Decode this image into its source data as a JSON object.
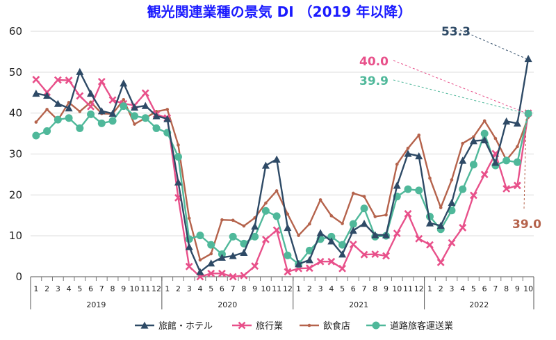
{
  "chart_data": {
    "type": "line",
    "title": "観光関連業種の景気 DI （2019 年以降）",
    "title_color": "#1a1aff",
    "ylim": [
      0,
      60
    ],
    "yticks": [
      0,
      10,
      20,
      30,
      40,
      50,
      60
    ],
    "grid": "horizontal",
    "legend_position": "bottom",
    "month_labels": [
      "1",
      "2",
      "3",
      "4",
      "5",
      "6",
      "7",
      "8",
      "9",
      "10",
      "11",
      "12",
      "1",
      "2",
      "3",
      "4",
      "5",
      "6",
      "7",
      "8",
      "9",
      "10",
      "11",
      "12",
      "1",
      "2",
      "3",
      "4",
      "5",
      "6",
      "7",
      "8",
      "9",
      "10",
      "11",
      "12",
      "1",
      "2",
      "3",
      "4",
      "5",
      "6",
      "7",
      "8",
      "9",
      "10"
    ],
    "year_labels": [
      "2019",
      "2020",
      "2021",
      "2022"
    ],
    "series": [
      {
        "name": "旅館・ホテル",
        "color": "#2e4a66",
        "marker": "triangle",
        "values": [
          44.8,
          44.3,
          42.3,
          41.2,
          50.1,
          44.8,
          40.5,
          39.9,
          47.3,
          41.4,
          41.8,
          39.3,
          38.6,
          23.1,
          7.3,
          1.2,
          3.3,
          4.7,
          5.1,
          5.9,
          12.3,
          27.2,
          28.7,
          12.0,
          3.1,
          4.1,
          10.7,
          8.7,
          5.5,
          11.3,
          13.0,
          10.2,
          10.2,
          22.3,
          30.1,
          29.5,
          13.1,
          12.5,
          18.1,
          28.4,
          33.2,
          33.4,
          27.9,
          38.0,
          37.5,
          53.3
        ]
      },
      {
        "name": "旅行業",
        "color": "#e8508a",
        "marker": "x",
        "values": [
          48.2,
          45.1,
          48.1,
          48.0,
          44.2,
          41.6,
          47.7,
          43.2,
          42.3,
          41.9,
          44.9,
          39.7,
          38.8,
          19.3,
          2.5,
          0.0,
          0.8,
          0.8,
          0.0,
          0.3,
          2.6,
          9.1,
          11.4,
          1.2,
          2.0,
          2.1,
          3.7,
          3.7,
          2.0,
          7.9,
          5.4,
          5.5,
          5.1,
          10.6,
          15.4,
          9.3,
          7.8,
          3.5,
          8.3,
          12.0,
          19.9,
          25.0,
          30.1,
          21.5,
          22.3,
          40.0
        ]
      },
      {
        "name": "飲食店",
        "color": "#b5634c",
        "marker": "circle-small",
        "values": [
          37.8,
          40.9,
          38.3,
          42.6,
          40.4,
          42.7,
          39.9,
          39.8,
          43.3,
          37.3,
          38.8,
          40.4,
          40.9,
          32.2,
          14.3,
          4.1,
          5.6,
          13.9,
          13.8,
          12.4,
          14.4,
          18.0,
          21.0,
          15.3,
          10.1,
          12.9,
          18.8,
          14.9,
          13.0,
          20.4,
          19.6,
          14.7,
          15.1,
          27.5,
          31.4,
          34.6,
          24.1,
          16.9,
          23.7,
          32.6,
          34.2,
          38.1,
          33.8,
          28.5,
          31.8,
          39.0
        ]
      },
      {
        "name": "道路旅客運送業",
        "color": "#4fb89a",
        "marker": "circle",
        "values": [
          34.5,
          35.6,
          38.4,
          38.8,
          36.3,
          39.7,
          37.5,
          38.1,
          41.7,
          39.3,
          38.8,
          36.3,
          35.2,
          29.3,
          9.2,
          10.1,
          7.8,
          5.5,
          9.8,
          8.1,
          9.8,
          16.1,
          14.8,
          5.2,
          3.1,
          6.4,
          9.2,
          9.8,
          7.8,
          12.9,
          16.7,
          9.8,
          10.0,
          19.6,
          21.4,
          21.1,
          14.7,
          11.6,
          16.2,
          21.4,
          27.4,
          35.0,
          27.2,
          28.4,
          28.0,
          39.9
        ]
      }
    ],
    "annotations": [
      {
        "text": "53.3",
        "series": "旅館・ホテル",
        "color": "#2e4a66"
      },
      {
        "text": "40.0",
        "series": "旅行業",
        "color": "#e8508a"
      },
      {
        "text": "39.9",
        "series": "道路旅客運送業",
        "color": "#4fb89a"
      },
      {
        "text": "39.0",
        "series": "飲食店",
        "color": "#b5634c"
      }
    ]
  }
}
